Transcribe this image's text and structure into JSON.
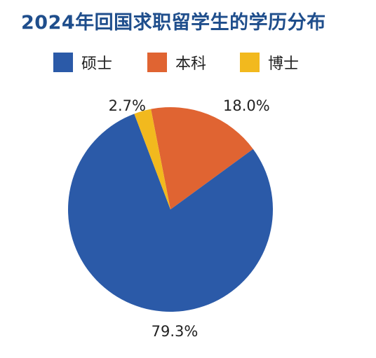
{
  "chart_data": {
    "type": "pie",
    "title": "2024年回国求职留学生的学历分布",
    "legend_position": "top",
    "slices": [
      {
        "name": "硕士",
        "value": 79.3,
        "label": "79.3%",
        "color": "#2b5aa8"
      },
      {
        "name": "本科",
        "value": 18.0,
        "label": "18.0%",
        "color": "#e06432"
      },
      {
        "name": "博士",
        "value": 2.7,
        "label": "2.7%",
        "color": "#f2b91e"
      }
    ]
  }
}
